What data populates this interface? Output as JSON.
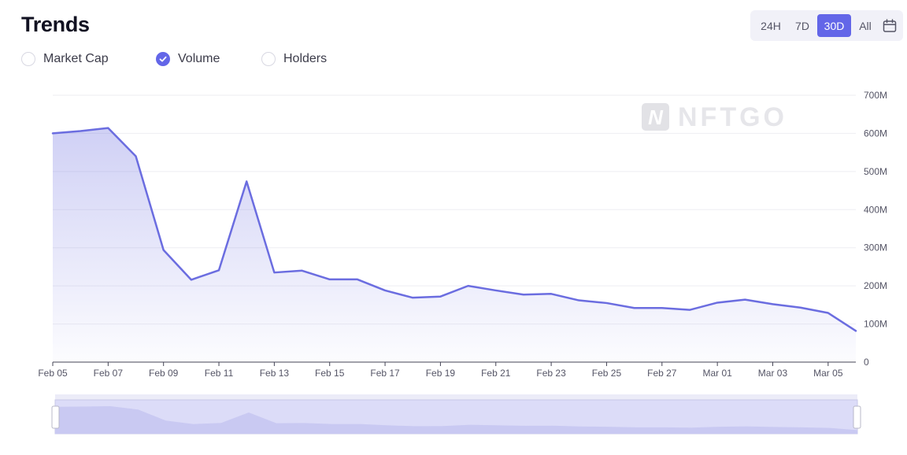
{
  "header": {
    "title": "Trends"
  },
  "range": {
    "options": [
      "24H",
      "7D",
      "30D",
      "All"
    ],
    "selected": "30D",
    "calendar_icon": "calendar-icon"
  },
  "legend": {
    "items": [
      {
        "label": "Market Cap",
        "checked": false
      },
      {
        "label": "Volume",
        "checked": true
      },
      {
        "label": "Holders",
        "checked": false
      }
    ]
  },
  "watermark": {
    "text": "NFTGO"
  },
  "colors": {
    "accent": "#6366e8",
    "line": "#6b6de0",
    "navigator_fill": "#dcdcf8"
  },
  "chart_data": {
    "type": "area",
    "title": "",
    "xlabel": "",
    "ylabel": "",
    "x": [
      "Feb 05",
      "Feb 06",
      "Feb 07",
      "Feb 08",
      "Feb 09",
      "Feb 10",
      "Feb 11",
      "Feb 12",
      "Feb 13",
      "Feb 14",
      "Feb 15",
      "Feb 16",
      "Feb 17",
      "Feb 18",
      "Feb 19",
      "Feb 20",
      "Feb 21",
      "Feb 22",
      "Feb 23",
      "Feb 24",
      "Feb 25",
      "Feb 26",
      "Feb 27",
      "Feb 28",
      "Mar 01",
      "Mar 02",
      "Mar 03",
      "Mar 04",
      "Mar 05",
      "Mar 06"
    ],
    "x_tick_labels": [
      "Feb 05",
      "Feb 07",
      "Feb 09",
      "Feb 11",
      "Feb 13",
      "Feb 15",
      "Feb 17",
      "Feb 19",
      "Feb 21",
      "Feb 23",
      "Feb 25",
      "Feb 27",
      "Mar 01",
      "Mar 03",
      "Mar 05"
    ],
    "series": [
      {
        "values": [
          600,
          606,
          614,
          540,
          294,
          216,
          241,
          474,
          235,
          240,
          217,
          217,
          188,
          169,
          172,
          200,
          188,
          177,
          179,
          162,
          155,
          142,
          142,
          137,
          156,
          164,
          152,
          143,
          129,
          82
        ]
      }
    ],
    "y_unit_suffix": "M",
    "ylim": [
      0,
      700
    ],
    "y_ticks": [
      0,
      100,
      200,
      300,
      400,
      500,
      600,
      700
    ],
    "y_tick_labels": [
      "0",
      "100M",
      "200M",
      "300M",
      "400M",
      "500M",
      "600M",
      "700M"
    ],
    "y_axis_position": "right",
    "grid": true,
    "navigator": true
  }
}
